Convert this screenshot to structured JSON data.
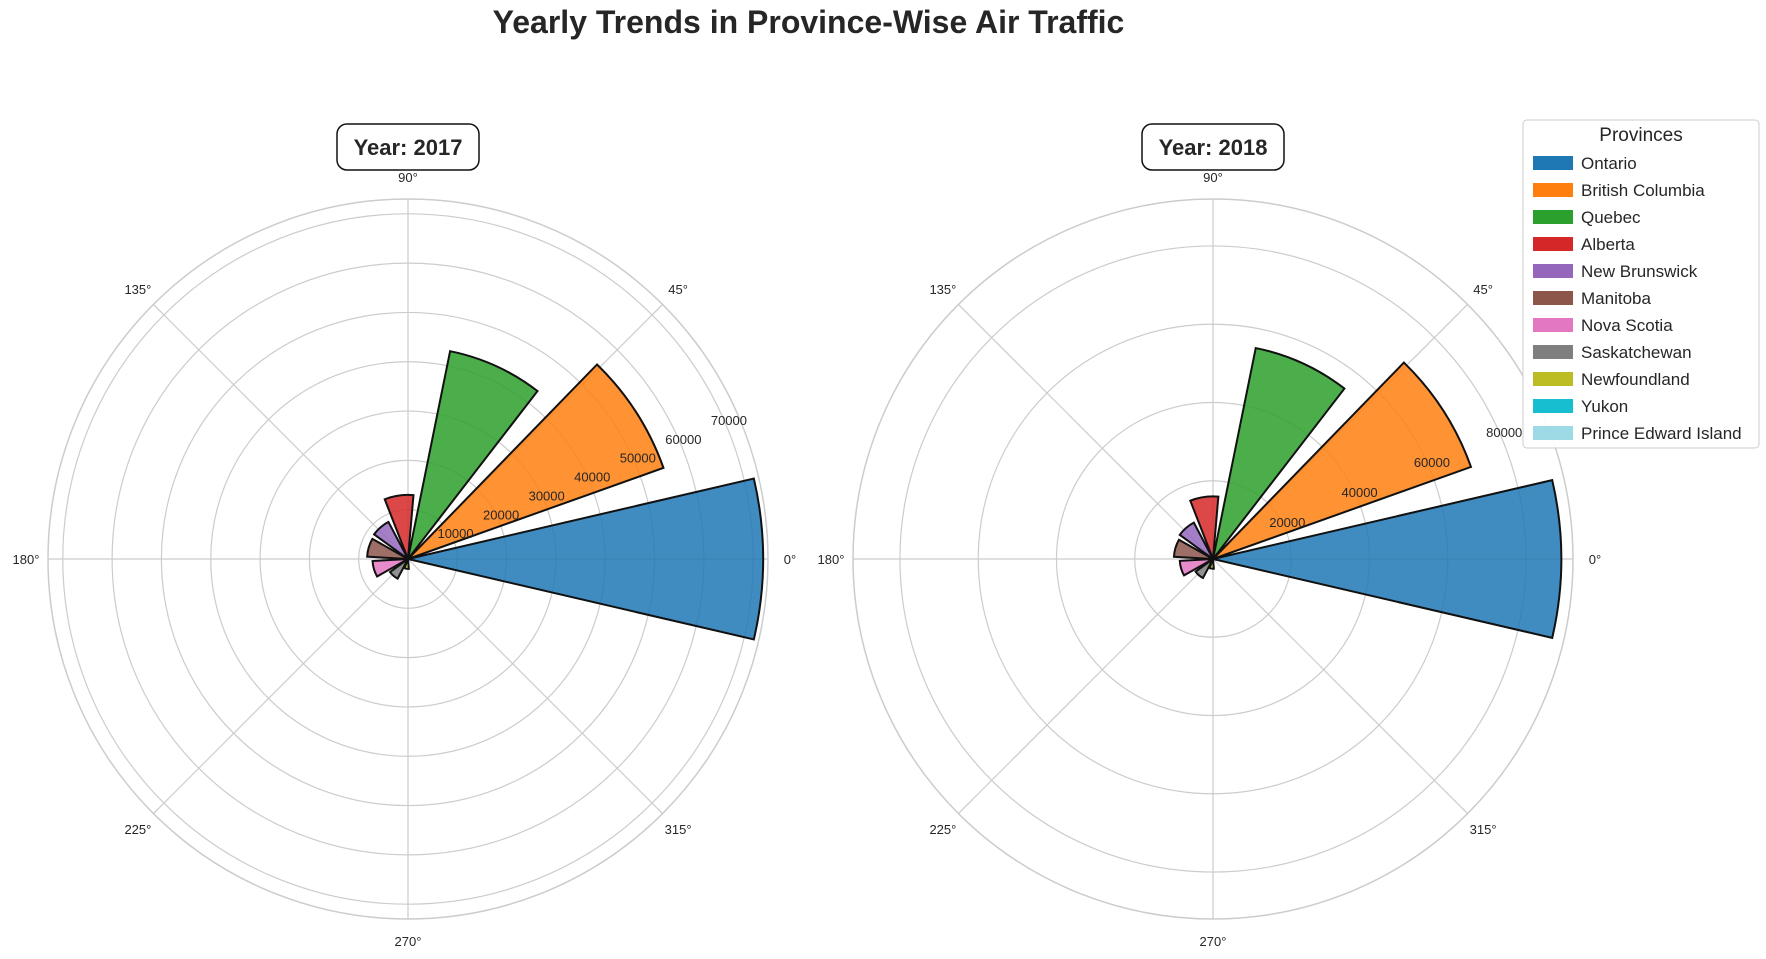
{
  "title": "Yearly Trends in Province-Wise Air Traffic",
  "legend": {
    "title": "Provinces",
    "entries": [
      {
        "label": "Ontario",
        "color": "#1f77b4"
      },
      {
        "label": "British Columbia",
        "color": "#ff7f0e"
      },
      {
        "label": "Quebec",
        "color": "#2ca02c"
      },
      {
        "label": "Alberta",
        "color": "#d62728"
      },
      {
        "label": "New Brunswick",
        "color": "#9467bd"
      },
      {
        "label": "Manitoba",
        "color": "#8c564b"
      },
      {
        "label": "Nova Scotia",
        "color": "#e377c2"
      },
      {
        "label": "Saskatchewan",
        "color": "#7f7f7f"
      },
      {
        "label": "Newfoundland",
        "color": "#bcbd22"
      },
      {
        "label": "Yukon",
        "color": "#17becf"
      },
      {
        "label": "Prince Edward Island",
        "color": "#9edae5"
      }
    ]
  },
  "chart_data": [
    {
      "type": "polar-bar",
      "title": "Year: 2017",
      "angle_ticks": [
        "0°",
        "45°",
        "90°",
        "135°",
        "180°",
        "225°",
        "270°",
        "315°"
      ],
      "r_ticks": [
        "10000",
        "20000",
        "30000",
        "40000",
        "50000",
        "60000",
        "70000"
      ],
      "rlim": [
        0,
        73000
      ],
      "grid": true,
      "categories": [
        "Ontario",
        "British Columbia",
        "Quebec",
        "Alberta",
        "New Brunswick",
        "Manitoba",
        "Nova Scotia",
        "Saskatchewan",
        "Newfoundland",
        "Yukon",
        "Prince Edward Island"
      ],
      "values": [
        72000,
        55000,
        43000,
        13000,
        8500,
        8300,
        7200,
        4500,
        2000,
        0,
        0
      ]
    },
    {
      "type": "polar-bar",
      "title": "Year: 2018",
      "angle_ticks": [
        "0°",
        "45°",
        "90°",
        "135°",
        "180°",
        "225°",
        "270°",
        "315°"
      ],
      "r_ticks": [
        "20000",
        "40000",
        "60000",
        "80000"
      ],
      "rlim": [
        0,
        92000
      ],
      "grid": true,
      "categories": [
        "Ontario",
        "British Columbia",
        "Quebec",
        "Alberta",
        "New Brunswick",
        "Manitoba",
        "Nova Scotia",
        "Saskatchewan",
        "Newfoundland",
        "Yukon",
        "Prince Edward Island"
      ],
      "values": [
        89000,
        70000,
        55000,
        16000,
        10500,
        10000,
        8500,
        5500,
        2500,
        0,
        0
      ]
    }
  ]
}
